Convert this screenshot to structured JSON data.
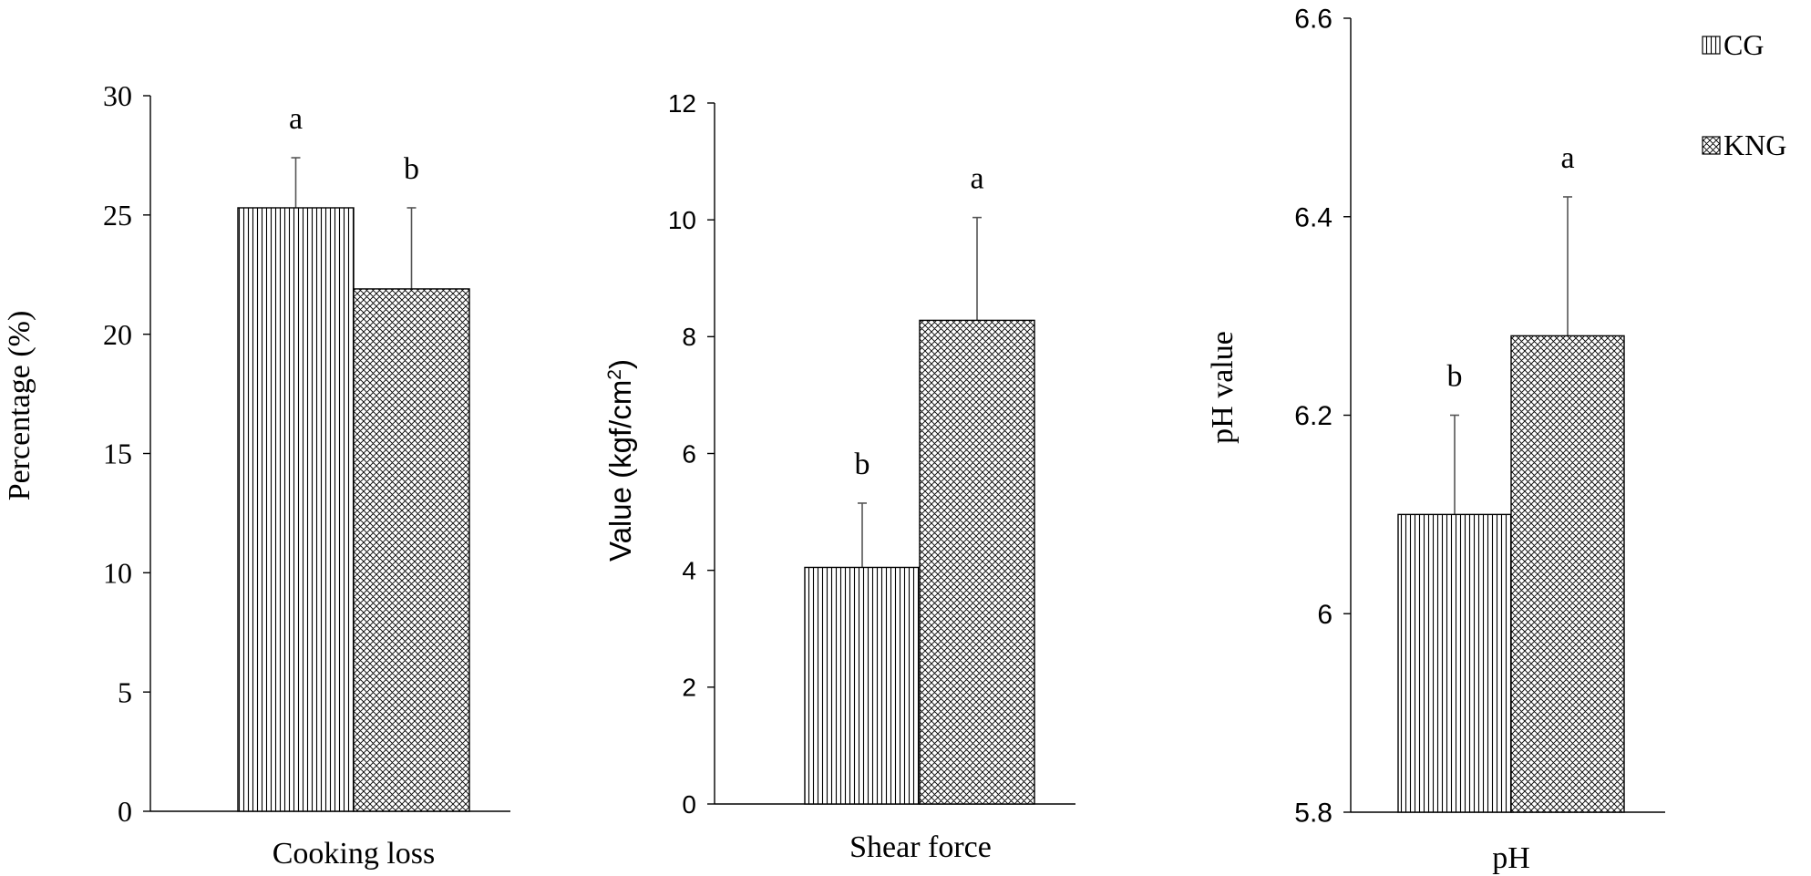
{
  "legend": {
    "placement": "top-right",
    "items": [
      {
        "label": "CG",
        "pattern": "vertical-lines"
      },
      {
        "label": "KNG",
        "pattern": "crosshatch"
      }
    ]
  },
  "colors": {
    "bar_fill": "#ffffff",
    "bar_stroke": "#000000",
    "error_bar": "#555555",
    "axis": "#000000"
  },
  "chart_data": [
    {
      "type": "bar",
      "ylabel": "Percentage (%)",
      "ylim": [
        0,
        30
      ],
      "yticks": [
        "0",
        "5",
        "10",
        "15",
        "20",
        "25",
        "30"
      ],
      "categories": [
        "Cooking loss"
      ],
      "series": [
        {
          "name": "CG",
          "values": [
            25.3
          ],
          "errors": [
            2.1
          ],
          "letters": [
            "a"
          ]
        },
        {
          "name": "KNG",
          "values": [
            21.9
          ],
          "errors": [
            3.4
          ],
          "letters": [
            "b"
          ]
        }
      ]
    },
    {
      "type": "bar",
      "ylabel": "Value (kgf/cm",
      "ylabel_sup": "2",
      "ylabel_end": ")",
      "ylim": [
        0,
        12
      ],
      "yticks": [
        "0",
        "2",
        "4",
        "6",
        "8",
        "10",
        "12"
      ],
      "categories": [
        "Shear force"
      ],
      "series": [
        {
          "name": "CG",
          "values": [
            4.05
          ],
          "errors": [
            1.1
          ],
          "letters": [
            "b"
          ]
        },
        {
          "name": "KNG",
          "values": [
            8.28
          ],
          "errors": [
            1.76
          ],
          "letters": [
            "a"
          ]
        }
      ]
    },
    {
      "type": "bar",
      "ylabel": "pH value",
      "ylim": [
        5.8,
        6.6
      ],
      "yticks": [
        "5.8",
        "6",
        "6.2",
        "6.4",
        "6.6"
      ],
      "categories": [
        "pH"
      ],
      "series": [
        {
          "name": "CG",
          "values": [
            6.1
          ],
          "errors": [
            0.1
          ],
          "letters": [
            "b"
          ]
        },
        {
          "name": "KNG",
          "values": [
            6.28
          ],
          "errors": [
            0.14
          ],
          "letters": [
            "a"
          ]
        }
      ]
    }
  ]
}
